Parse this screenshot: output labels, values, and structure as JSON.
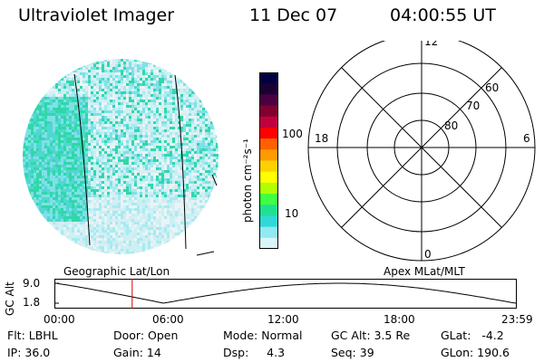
{
  "header": {
    "instrument": "Ultraviolet Imager",
    "date": "11 Dec 07",
    "time": "04:00:55 UT"
  },
  "colorbar": {
    "label": "photon cm⁻²s⁻¹",
    "ticks": [
      "100",
      "10"
    ],
    "scale": "log",
    "colors": [
      "#000040",
      "#1a0033",
      "#4a0040",
      "#800030",
      "#c0003c",
      "#ff0000",
      "#ff6000",
      "#ff9a00",
      "#ffd000",
      "#ffff00",
      "#b0ff00",
      "#40ff40",
      "#20e090",
      "#30d8d8",
      "#90eaf0",
      "#d8f6f8"
    ]
  },
  "polar_plot": {
    "mlt_labels": [
      "12",
      "18",
      "6",
      "0"
    ],
    "lat_labels": [
      "60",
      "70",
      "80"
    ]
  },
  "timeline": {
    "ylabel": "GC Alt",
    "yticks": [
      "9.0",
      "1.8"
    ],
    "left_label": "Geographic Lat/Lon",
    "right_label": "Apex MLat/MLT",
    "xticks": [
      "00:00",
      "06:00",
      "12:00",
      "18:00",
      "23:59"
    ],
    "current_time_fraction": 0.167,
    "line_color": "#000000",
    "marker_color": "#d00000"
  },
  "status": {
    "flt": "Flt: LBHL",
    "door": "Door: Open",
    "mode": "Mode: Normal",
    "gc_alt": "GC Alt: 3.5 Re",
    "glat": "GLat:   -4.2",
    "ip": "IP: 36.0",
    "gain": "Gain: 14",
    "dsp": "Dsp:     4.3",
    "seq": "Seq: 39",
    "glon": "GLon: 190.6"
  }
}
